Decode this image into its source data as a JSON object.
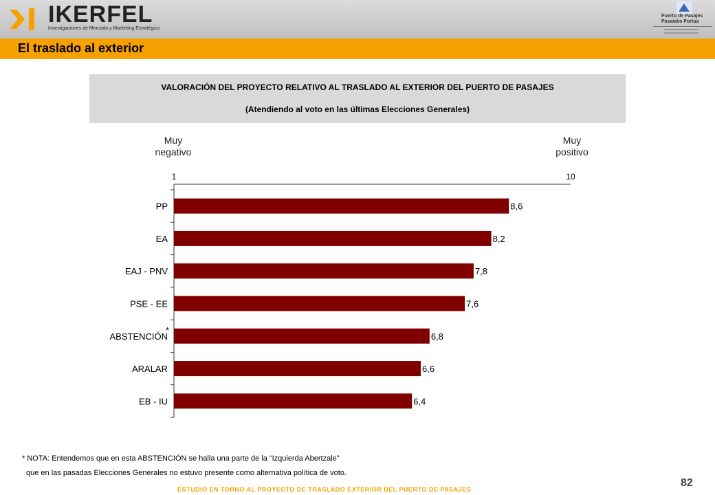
{
  "header": {
    "logo_name": "IKERFEL",
    "logo_tagline": "Investigaciones de Mercado y Marketing Estratégico",
    "port_name_line1": "Puerto de Pasajes",
    "port_name_line2": "Pasaiako Portua"
  },
  "section_title": "El traslado al exterior",
  "chart_header": {
    "title": "VALORACIÓN DEL PROYECTO RELATIVO AL TRASLADO AL EXTERIOR DEL PUERTO DE PASAJES",
    "subtitle": "(Atendiendo al voto en las últimas Elecciones Generales)"
  },
  "scale": {
    "left_line1": "Muy",
    "left_line2": "negativo",
    "right_line1": "Muy",
    "right_line2": "positivo"
  },
  "chart_data": {
    "type": "bar",
    "orientation": "horizontal",
    "categories": [
      "PP",
      "EA",
      "EAJ - PNV",
      "PSE - EE",
      "ABSTENCIÓN",
      "ARALAR",
      "EB - IU"
    ],
    "values": [
      8.6,
      8.2,
      7.8,
      7.6,
      6.8,
      6.6,
      6.4
    ],
    "value_labels": [
      "8,6",
      "8,2",
      "7,8",
      "7,6",
      "6,8",
      "6,6",
      "6,4"
    ],
    "xlim": [
      1,
      10
    ],
    "tick_labels": [
      "1",
      "10"
    ],
    "bar_color": "#800000",
    "annotation": "*",
    "annotated_category": "ABSTENCIÓN"
  },
  "notes": {
    "line1": "* NOTA: Entendemos que en esta ABSTENCIÓN se halla una parte de la “Izquierda Abertzale”",
    "line2": "que en las pasadas Elecciones Generales no estuvo presente como alternativa política de voto."
  },
  "page_number": "82",
  "footer": "ESTUDIO EN TORNO AL PROYECTO DE TRASLADO EXTERIOR DEL PUERTO DE PASAJES",
  "colors": {
    "accent": "#f7a100",
    "bar": "#800000",
    "header_band": "#d9d9d9"
  }
}
